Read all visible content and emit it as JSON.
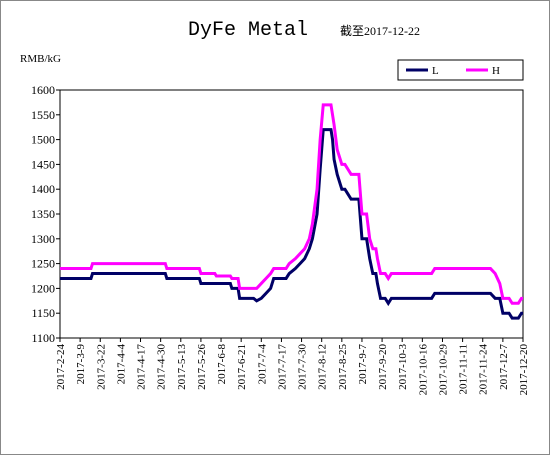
{
  "chart_data": {
    "type": "line",
    "title": "DyFe Metal",
    "subtitle": "截至2017-12-22",
    "y_label": "RMB/kG",
    "x": [
      "2017-2-24",
      "2017-3-16",
      "2017-3-17",
      "2017-5-3",
      "2017-5-4",
      "2017-5-25",
      "2017-5-26",
      "2017-6-4",
      "2017-6-5",
      "2017-6-14",
      "2017-6-15",
      "2017-6-19",
      "2017-6-20",
      "2017-6-29",
      "2017-7-1",
      "2017-7-4",
      "2017-7-7",
      "2017-7-10",
      "2017-7-12",
      "2017-7-20",
      "2017-7-22",
      "2017-7-26",
      "2017-7-29",
      "2017-8-1",
      "2017-8-4",
      "2017-8-6",
      "2017-8-9",
      "2017-8-11",
      "2017-8-13",
      "2017-8-18",
      "2017-8-19",
      "2017-8-20",
      "2017-8-22",
      "2017-8-25",
      "2017-8-27",
      "2017-8-29",
      "2017-8-31",
      "2017-9-5",
      "2017-9-7",
      "2017-9-10",
      "2017-9-12",
      "2017-9-14",
      "2017-9-16",
      "2017-9-17",
      "2017-9-19",
      "2017-9-22",
      "2017-9-24",
      "2017-9-26",
      "2017-10-22",
      "2017-10-24",
      "2017-11-29",
      "2017-12-2",
      "2017-12-5",
      "2017-12-7",
      "2017-12-11",
      "2017-12-13",
      "2017-12-17",
      "2017-12-19",
      "2017-12-20"
    ],
    "series": [
      {
        "name": "L",
        "color": "#000066",
        "values": [
          1220,
          1220,
          1230,
          1230,
          1220,
          1220,
          1210,
          1210,
          1210,
          1210,
          1200,
          1200,
          1180,
          1180,
          1175,
          1180,
          1190,
          1200,
          1220,
          1220,
          1230,
          1240,
          1250,
          1260,
          1280,
          1300,
          1350,
          1440,
          1520,
          1520,
          1500,
          1460,
          1430,
          1400,
          1400,
          1390,
          1380,
          1380,
          1300,
          1300,
          1260,
          1230,
          1230,
          1210,
          1180,
          1180,
          1170,
          1180,
          1180,
          1190,
          1190,
          1180,
          1180,
          1150,
          1150,
          1140,
          1140,
          1150,
          1150
        ]
      },
      {
        "name": "H",
        "color": "#ff00ff",
        "values": [
          1240,
          1240,
          1250,
          1250,
          1240,
          1240,
          1230,
          1230,
          1225,
          1225,
          1220,
          1220,
          1200,
          1200,
          1200,
          1210,
          1220,
          1230,
          1240,
          1240,
          1250,
          1260,
          1270,
          1280,
          1300,
          1330,
          1400,
          1500,
          1570,
          1570,
          1550,
          1530,
          1480,
          1450,
          1450,
          1440,
          1430,
          1430,
          1350,
          1350,
          1300,
          1280,
          1280,
          1260,
          1230,
          1230,
          1220,
          1230,
          1230,
          1240,
          1240,
          1230,
          1210,
          1180,
          1180,
          1170,
          1170,
          1180,
          1180
        ]
      }
    ],
    "xlim": [
      "2017-2-24",
      "2017-12-20"
    ],
    "xticks": [
      "2017-2-24",
      "2017-3-9",
      "2017-3-22",
      "2017-4-4",
      "2017-4-17",
      "2017-4-30",
      "2017-5-13",
      "2017-5-26",
      "2017-6-8",
      "2017-6-21",
      "2017-7-4",
      "2017-7-17",
      "2017-7-30",
      "2017-8-12",
      "2017-8-25",
      "2017-9-7",
      "2017-9-20",
      "2017-10-3",
      "2017-10-16",
      "2017-10-29",
      "2017-11-11",
      "2017-11-24",
      "2017-12-7",
      "2017-12-20"
    ],
    "ylim": [
      1100,
      1600
    ],
    "yticks": [
      1100,
      1150,
      1200,
      1250,
      1300,
      1350,
      1400,
      1450,
      1500,
      1550,
      1600
    ],
    "grid": false,
    "legend": "top-right"
  }
}
